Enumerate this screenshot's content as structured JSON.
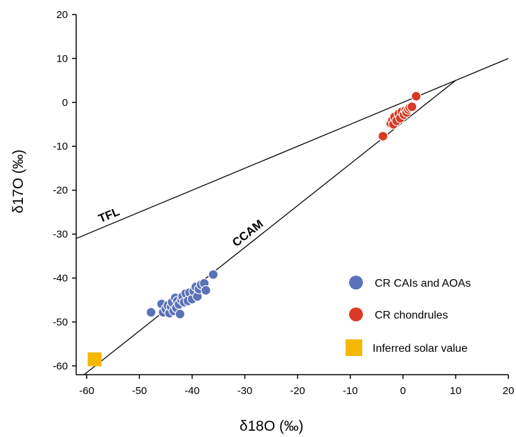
{
  "chart_data": {
    "type": "scatter",
    "xlabel": "δ18O (‰)",
    "ylabel": "δ17O (‰)",
    "xlim": [
      -62,
      20
    ],
    "ylim": [
      -62,
      20
    ],
    "xticks": [
      -60,
      -50,
      -40,
      -30,
      -20,
      -10,
      0,
      10,
      20
    ],
    "yticks": [
      -60,
      -50,
      -40,
      -30,
      -20,
      -10,
      0,
      10,
      20
    ],
    "grid": false,
    "legend_position": "bottom-right",
    "reference_lines": [
      {
        "label": "TFL",
        "points": [
          [
            -62,
            -31.0
          ],
          [
            20,
            10.0
          ]
        ]
      },
      {
        "label": "CCAM",
        "points": [
          [
            -60.5,
            -62
          ],
          [
            10,
            5
          ]
        ]
      }
    ],
    "series": [
      {
        "name": "CR CAIs and AOAs",
        "color": "#5b72b8",
        "marker": "circle",
        "points": [
          [
            -47.8,
            -47.8
          ],
          [
            -45.8,
            -45.9
          ],
          [
            -45.5,
            -47.8
          ],
          [
            -45.0,
            -47.0
          ],
          [
            -44.6,
            -46.2
          ],
          [
            -44.3,
            -48.0
          ],
          [
            -44.0,
            -46.5
          ],
          [
            -43.8,
            -45.5
          ],
          [
            -43.5,
            -47.5
          ],
          [
            -43.2,
            -44.5
          ],
          [
            -43.0,
            -46.8
          ],
          [
            -42.8,
            -45.2
          ],
          [
            -42.5,
            -46.0
          ],
          [
            -42.3,
            -48.2
          ],
          [
            -42.0,
            -45.0
          ],
          [
            -41.8,
            -44.2
          ],
          [
            -41.5,
            -45.5
          ],
          [
            -41.2,
            -43.5
          ],
          [
            -40.8,
            -45.2
          ],
          [
            -40.5,
            -43.3
          ],
          [
            -40.0,
            -44.8
          ],
          [
            -39.7,
            -43.0
          ],
          [
            -39.3,
            -42.0
          ],
          [
            -39.0,
            -44.2
          ],
          [
            -38.7,
            -42.5
          ],
          [
            -38.3,
            -41.5
          ],
          [
            -37.7,
            -41.2
          ],
          [
            -37.4,
            -42.8
          ],
          [
            -36.0,
            -39.2
          ]
        ]
      },
      {
        "name": "CR chondrules",
        "color": "#d83a26",
        "marker": "circle",
        "points": [
          [
            -3.8,
            -7.7
          ],
          [
            -2.3,
            -4.8
          ],
          [
            -2.0,
            -4.0
          ],
          [
            -1.8,
            -5.0
          ],
          [
            -1.6,
            -3.3
          ],
          [
            -1.2,
            -4.2
          ],
          [
            -0.8,
            -2.6
          ],
          [
            -0.5,
            -3.6
          ],
          [
            -0.2,
            -2.1
          ],
          [
            0.2,
            -2.8
          ],
          [
            0.5,
            -1.8
          ],
          [
            0.7,
            -2.3
          ],
          [
            1.0,
            -1.6
          ],
          [
            1.3,
            -1.2
          ],
          [
            1.7,
            -1.0
          ],
          [
            2.5,
            1.4
          ]
        ]
      },
      {
        "name": "Inferred solar value",
        "color": "#f5b800",
        "marker": "square",
        "points": [
          [
            -58.5,
            -58.5
          ]
        ]
      }
    ]
  }
}
